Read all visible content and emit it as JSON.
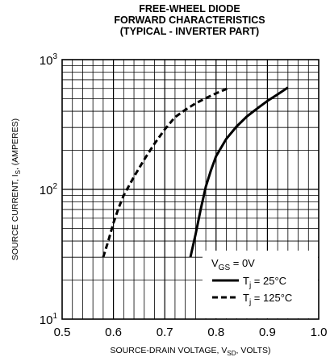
{
  "chart_data": {
    "type": "line",
    "title_lines": [
      "FREE-WHEEL DIODE",
      "FORWARD CHARACTERISTICS",
      "(TYPICAL - INVERTER PART)"
    ],
    "xlabel": {
      "main": "SOURCE-DRAIN VOLTAGE, V",
      "sub": "SD",
      "tail": ", VOLTS)"
    },
    "ylabel": {
      "main": "SOURCE CURRENT, I",
      "sub": "S",
      "tail": ", (AMPERES)"
    },
    "x_ticks": [
      "0.5",
      "0.6",
      "0.7",
      "0.8",
      "0.9",
      "1.0"
    ],
    "y_ticks": [
      {
        "base": "10",
        "exp": "1"
      },
      {
        "base": "10",
        "exp": "2"
      },
      {
        "base": "10",
        "exp": "3"
      }
    ],
    "xlim": [
      0.5,
      1.0
    ],
    "ylim": [
      10,
      1000
    ],
    "y_scale": "log",
    "grid": true,
    "legend": {
      "placement": "bottom-right",
      "condition": {
        "main": "V",
        "sub": "GS",
        "tail": " = 0V"
      },
      "entries": [
        {
          "main": "T",
          "sub": "j",
          "tail": " = 25°C",
          "style": "solid"
        },
        {
          "main": "T",
          "sub": "j",
          "tail": " = 125°C",
          "style": "dashed"
        }
      ]
    },
    "series": [
      {
        "style": "solid",
        "x": [
          0.75,
          0.76,
          0.77,
          0.78,
          0.79,
          0.8,
          0.82,
          0.84,
          0.86,
          0.88,
          0.9,
          0.92,
          0.94
        ],
        "y": [
          30,
          45,
          70,
          105,
          140,
          180,
          245,
          305,
          365,
          420,
          480,
          540,
          610
        ]
      },
      {
        "style": "dashed",
        "x": [
          0.58,
          0.59,
          0.6,
          0.61,
          0.62,
          0.64,
          0.66,
          0.68,
          0.7,
          0.72,
          0.74,
          0.76,
          0.78,
          0.8,
          0.825
        ],
        "y": [
          30,
          40,
          55,
          72,
          90,
          125,
          170,
          225,
          290,
          360,
          410,
          460,
          505,
          550,
          605
        ]
      }
    ]
  }
}
